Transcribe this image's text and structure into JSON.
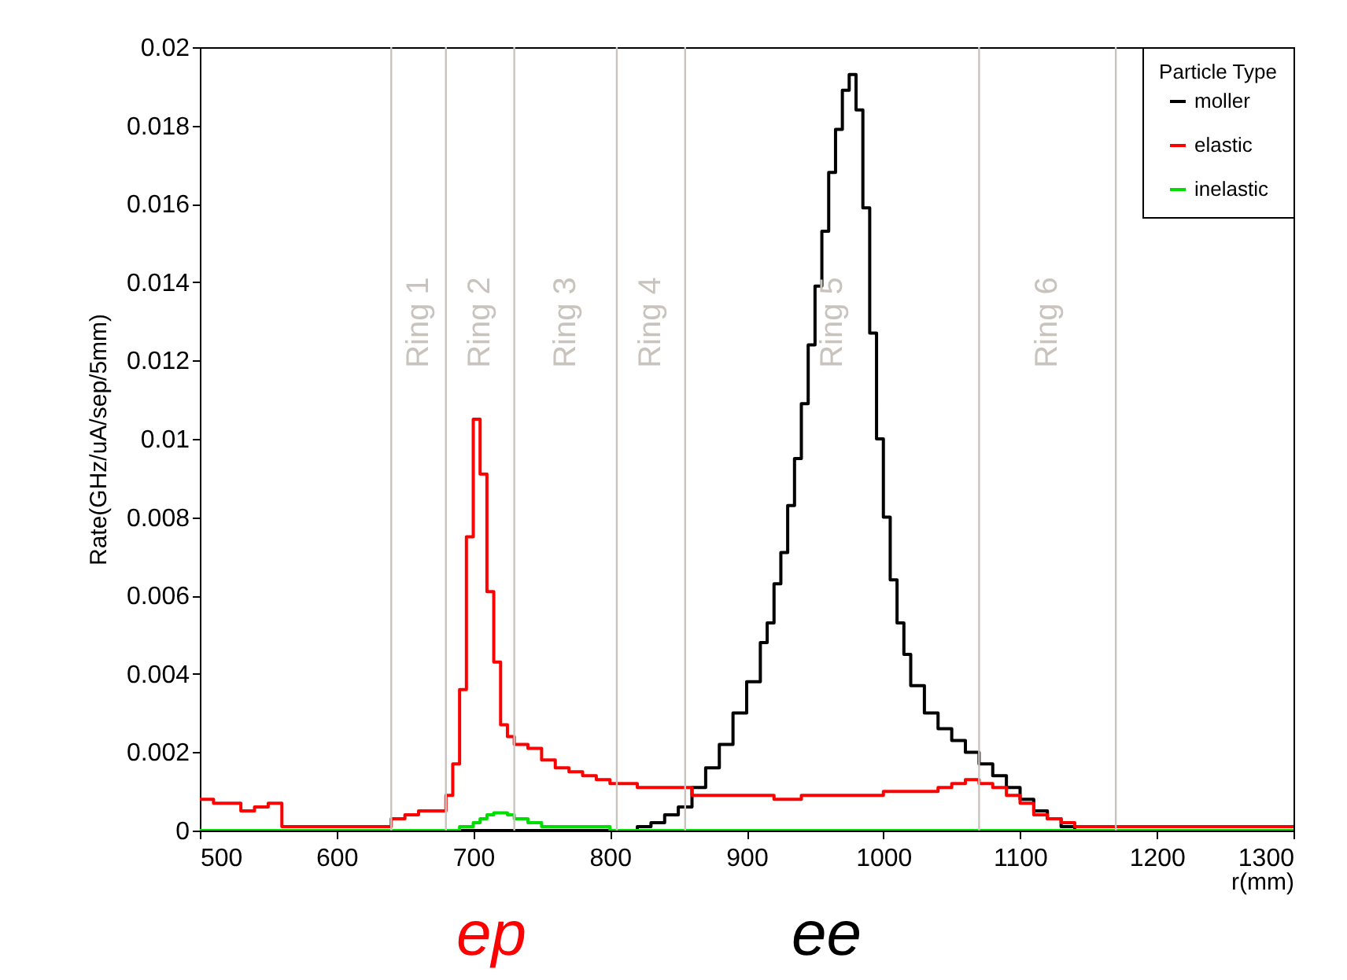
{
  "chart_data": {
    "type": "step",
    "xlabel": "r(mm)",
    "ylabel": "Rate(GHz/uA/sep/5mm)",
    "legend_title": "Particle Type",
    "xlim": [
      500,
      1300
    ],
    "xticks": [
      500,
      600,
      700,
      800,
      900,
      1000,
      1100,
      1200,
      1300
    ],
    "ylim": [
      0,
      0.02
    ],
    "yticks": [
      0,
      0.002,
      0.004,
      0.006,
      0.008,
      0.01,
      0.012,
      0.014,
      0.016,
      0.018,
      0.02
    ],
    "grid": false,
    "legend": "top right",
    "ref_lines": [
      {
        "axis": "x",
        "value": 640,
        "color": "#c8c3bd"
      },
      {
        "axis": "x",
        "value": 680,
        "color": "#c8c3bd"
      },
      {
        "axis": "x",
        "value": 730,
        "color": "#c8c3bd"
      },
      {
        "axis": "x",
        "value": 805,
        "color": "#c8c3bd"
      },
      {
        "axis": "x",
        "value": 855,
        "color": "#c8c3bd"
      },
      {
        "axis": "x",
        "value": 1070,
        "color": "#c8c3bd"
      },
      {
        "axis": "x",
        "value": 1170,
        "color": "#c8c3bd"
      }
    ],
    "annotations": [
      "Ring 1",
      "Ring 2",
      "Ring 3",
      "Ring 4",
      "Ring 5",
      "Ring 6",
      "ep",
      "ee"
    ],
    "series": [
      {
        "name": "moller",
        "color": "#000000",
        "x": [
          500,
          820,
          830,
          840,
          850,
          860,
          870,
          880,
          890,
          900,
          910,
          915,
          920,
          925,
          930,
          935,
          940,
          945,
          950,
          955,
          960,
          965,
          970,
          975,
          980,
          985,
          990,
          995,
          1000,
          1005,
          1010,
          1015,
          1020,
          1030,
          1040,
          1050,
          1060,
          1070,
          1080,
          1090,
          1100,
          1110,
          1120,
          1130,
          1140,
          1300
        ],
        "values": [
          0,
          0.0001,
          0.0002,
          0.0004,
          0.0006,
          0.0011,
          0.0016,
          0.0022,
          0.003,
          0.0038,
          0.0048,
          0.0053,
          0.0063,
          0.0071,
          0.0083,
          0.0095,
          0.0109,
          0.0124,
          0.0139,
          0.0153,
          0.0168,
          0.0179,
          0.0189,
          0.0193,
          0.0184,
          0.0159,
          0.0127,
          0.01,
          0.008,
          0.0064,
          0.0053,
          0.0045,
          0.0037,
          0.003,
          0.0026,
          0.0023,
          0.002,
          0.0017,
          0.0014,
          0.0011,
          0.0008,
          0.0005,
          0.0003,
          0.0001,
          0,
          0
        ]
      },
      {
        "name": "elastic",
        "color": "#ff0000",
        "x": [
          500,
          510,
          520,
          530,
          540,
          550,
          560,
          600,
          640,
          650,
          660,
          670,
          680,
          685,
          690,
          695,
          700,
          705,
          710,
          715,
          720,
          725,
          730,
          740,
          750,
          760,
          770,
          780,
          790,
          800,
          820,
          840,
          860,
          880,
          900,
          920,
          940,
          960,
          980,
          1000,
          1020,
          1040,
          1050,
          1060,
          1070,
          1080,
          1090,
          1100,
          1110,
          1120,
          1130,
          1140,
          1160,
          1200,
          1300
        ],
        "values": [
          0.0008,
          0.0007,
          0.0007,
          0.0005,
          0.0006,
          0.0007,
          0.0001,
          0.0001,
          0.0003,
          0.0004,
          0.0005,
          0.0005,
          0.0009,
          0.0017,
          0.0036,
          0.0075,
          0.0105,
          0.0091,
          0.0061,
          0.0043,
          0.0027,
          0.0024,
          0.0022,
          0.0021,
          0.0018,
          0.0016,
          0.0015,
          0.0014,
          0.0013,
          0.0012,
          0.0011,
          0.0011,
          0.0009,
          0.0009,
          0.0009,
          0.0008,
          0.0009,
          0.0009,
          0.0009,
          0.001,
          0.001,
          0.0011,
          0.0012,
          0.0013,
          0.0012,
          0.0011,
          0.0009,
          0.0007,
          0.0004,
          0.0003,
          0.0002,
          0.0001,
          0.0001,
          0.0001,
          0.0001
        ]
      },
      {
        "name": "inelastic",
        "color": "#00dd00",
        "x": [
          500,
          690,
          700,
          705,
          710,
          715,
          725,
          730,
          740,
          750,
          770,
          800,
          1300
        ],
        "values": [
          0,
          0.0001,
          0.0002,
          0.0003,
          0.0004,
          0.00045,
          0.0004,
          0.0003,
          0.0002,
          0.0001,
          0.0001,
          0,
          0
        ]
      }
    ]
  }
}
